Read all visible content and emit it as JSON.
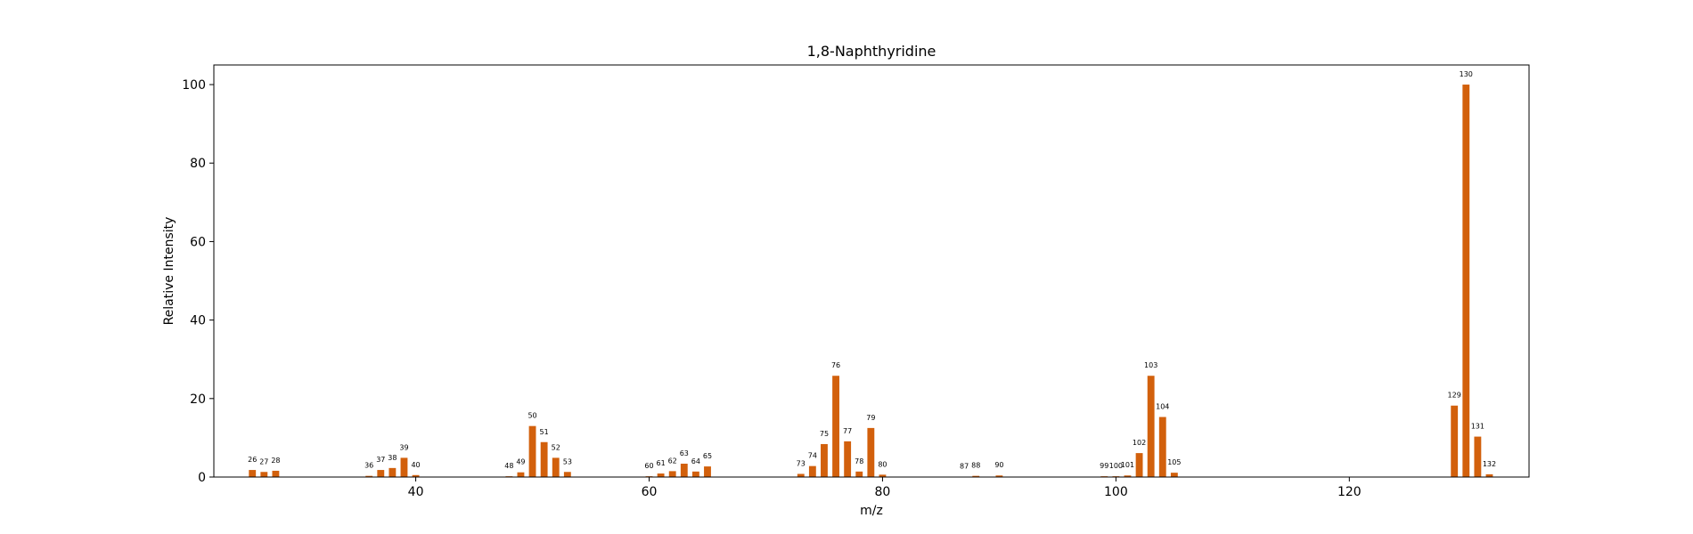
{
  "chart_data": {
    "type": "bar",
    "title": "1,8-Naphthyridine",
    "xlabel": "m/z",
    "ylabel": "Relative Intensity",
    "xlim": [
      22.7,
      135.4
    ],
    "ylim": [
      0,
      105
    ],
    "xticks": [
      40,
      60,
      80,
      100,
      120
    ],
    "yticks": [
      0,
      20,
      40,
      60,
      80,
      100
    ],
    "bar_color": "#D2600C",
    "grid": false,
    "legend": "none",
    "x": [
      26,
      27,
      28,
      36,
      37,
      38,
      39,
      40,
      48,
      49,
      50,
      51,
      52,
      53,
      60,
      61,
      62,
      63,
      64,
      65,
      73,
      74,
      75,
      76,
      77,
      78,
      79,
      80,
      87,
      88,
      90,
      99,
      100,
      101,
      102,
      103,
      104,
      105,
      129,
      130,
      131,
      132
    ],
    "values": [
      1.8,
      1.3,
      1.6,
      0.3,
      1.8,
      2.3,
      4.9,
      0.5,
      0.2,
      1.2,
      13.0,
      8.9,
      4.9,
      1.3,
      0.2,
      0.9,
      1.5,
      3.4,
      1.4,
      2.7,
      0.8,
      2.8,
      8.4,
      25.8,
      9.1,
      1.4,
      12.5,
      0.6,
      0.1,
      0.3,
      0.4,
      0.2,
      0.2,
      0.4,
      6.1,
      25.8,
      15.3,
      1.1,
      18.2,
      100.0,
      10.3,
      0.7
    ],
    "labels": [
      "26",
      "27",
      "28",
      "36",
      "37",
      "38",
      "39",
      "40",
      "48",
      "49",
      "50",
      "51",
      "52",
      "53",
      "60",
      "61",
      "62",
      "63",
      "64",
      "65",
      "73",
      "74",
      "75",
      "76",
      "77",
      "78",
      "79",
      "80",
      "87",
      "88",
      "90",
      "99",
      "100",
      "101",
      "102",
      "103",
      "104",
      "105",
      "129",
      "130",
      "131",
      "132"
    ]
  }
}
